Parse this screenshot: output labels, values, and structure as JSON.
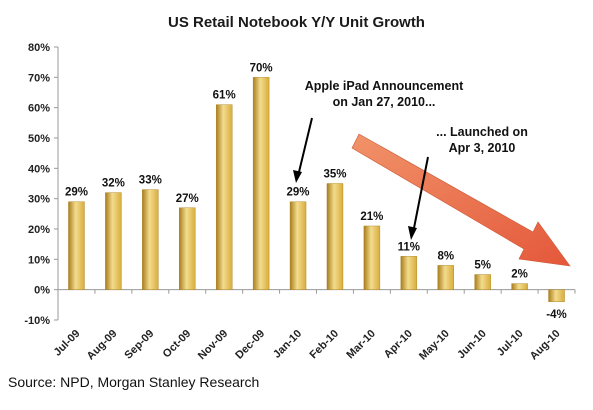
{
  "chart_data": {
    "type": "bar",
    "title": "US Retail Notebook Y/Y Unit Growth",
    "categories": [
      "Jul-09",
      "Aug-09",
      "Sep-09",
      "Oct-09",
      "Nov-09",
      "Dec-09",
      "Jan-10",
      "Feb-10",
      "Mar-10",
      "Apr-10",
      "May-10",
      "Jun-10",
      "Jul-10",
      "Aug-10"
    ],
    "values": [
      29,
      32,
      33,
      27,
      61,
      70,
      29,
      35,
      21,
      11,
      8,
      5,
      2,
      -4
    ],
    "value_labels": [
      "29%",
      "32%",
      "33%",
      "27%",
      "61%",
      "70%",
      "29%",
      "35%",
      "21%",
      "11%",
      "8%",
      "5%",
      "2%",
      "-4%"
    ],
    "ylim": [
      -10,
      80
    ],
    "yticks": [
      -10,
      0,
      10,
      20,
      30,
      40,
      50,
      60,
      70,
      80
    ],
    "ytick_labels": [
      "-10%",
      "0%",
      "10%",
      "20%",
      "30%",
      "40%",
      "50%",
      "60%",
      "70%",
      "80%"
    ],
    "xlabel": "",
    "ylabel": "",
    "grid": false,
    "legend": false,
    "annotations": [
      {
        "line1": "Apple iPad Announcement",
        "line2": "on Jan 27, 2010..."
      },
      {
        "line1": "... Launched on",
        "line2": "Apr 3, 2010"
      }
    ],
    "colors": {
      "bar": "#d8ad3c",
      "bar_highlight": "#f3dc8e",
      "bar_shadow": "#a97d1c",
      "trend_arrow": "#e8653a"
    }
  },
  "source": "Source: NPD, Morgan Stanley Research"
}
